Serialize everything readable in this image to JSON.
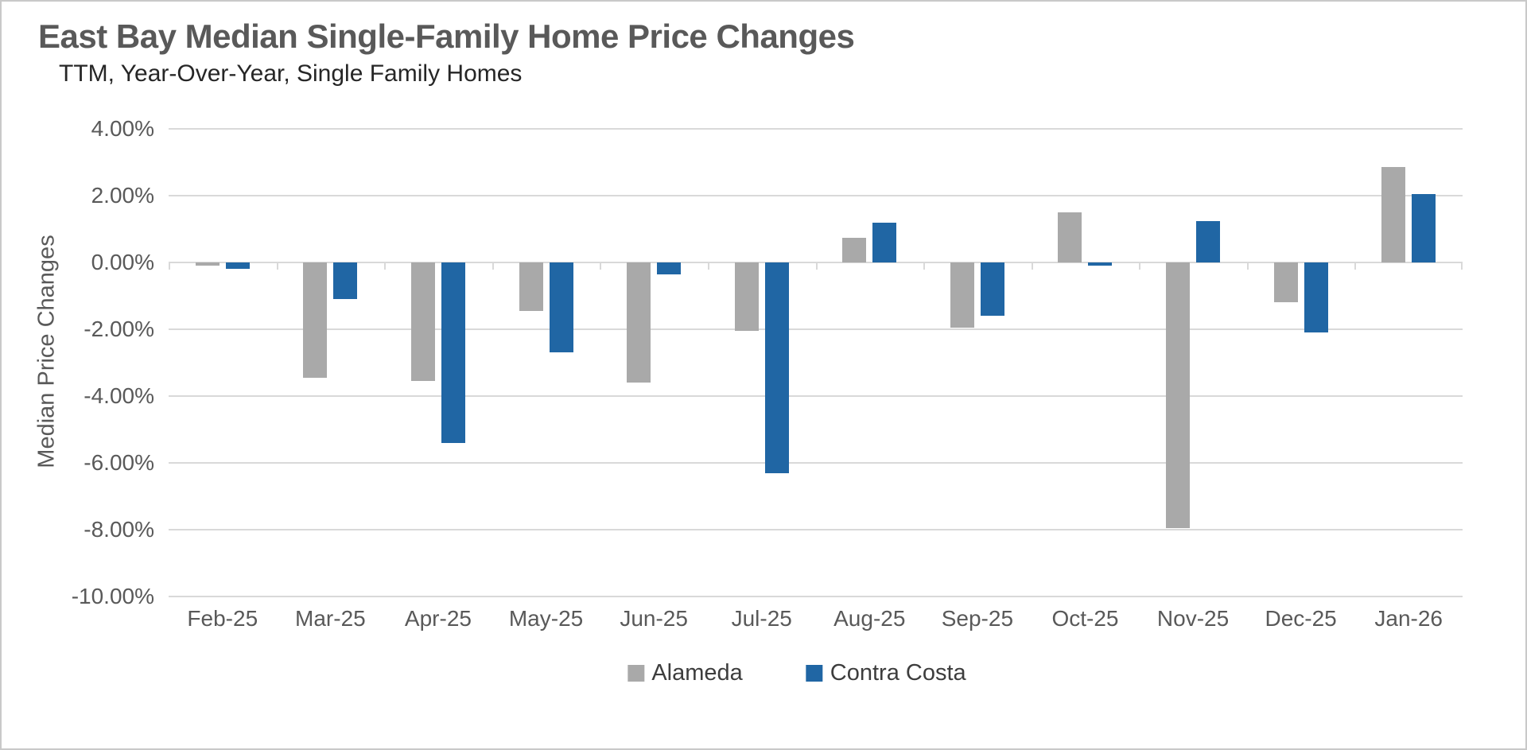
{
  "chart_data": {
    "type": "bar",
    "title": "East Bay Median Single-Family Home Price Changes",
    "subtitle": "TTM, Year-Over-Year, Single Family Homes",
    "ylabel": "Median Price Changes",
    "xlabel": "",
    "categories": [
      "Feb-25",
      "Mar-25",
      "Apr-25",
      "May-25",
      "Jun-25",
      "Jul-25",
      "Aug-25",
      "Sep-25",
      "Oct-25",
      "Nov-25",
      "Dec-25",
      "Jan-26"
    ],
    "series": [
      {
        "name": "Alameda",
        "color": "#a9a9a9",
        "values": [
          -0.1,
          -3.45,
          -3.55,
          -1.45,
          -3.6,
          -2.05,
          0.75,
          -1.95,
          1.5,
          -7.95,
          -1.2,
          2.85
        ]
      },
      {
        "name": "Contra Costa",
        "color": "#2066a4",
        "values": [
          -0.2,
          -1.1,
          -5.4,
          -2.7,
          -0.35,
          -6.3,
          1.2,
          -1.6,
          -0.1,
          1.25,
          -2.1,
          2.05
        ]
      }
    ],
    "ylim": [
      -10,
      4
    ],
    "ytick_step": 2,
    "ytick_labels": [
      "4.00%",
      "2.00%",
      "0.00%",
      "-2.00%",
      "-4.00%",
      "-6.00%",
      "-8.00%",
      "-10.00%"
    ],
    "grid": true,
    "legend_position": "bottom",
    "colors": {
      "gridline": "#d9d9d9",
      "title_text": "#595959",
      "subtitle_text": "#262626",
      "axis_text": "#595959",
      "legend_text": "#3d3d3d"
    }
  }
}
